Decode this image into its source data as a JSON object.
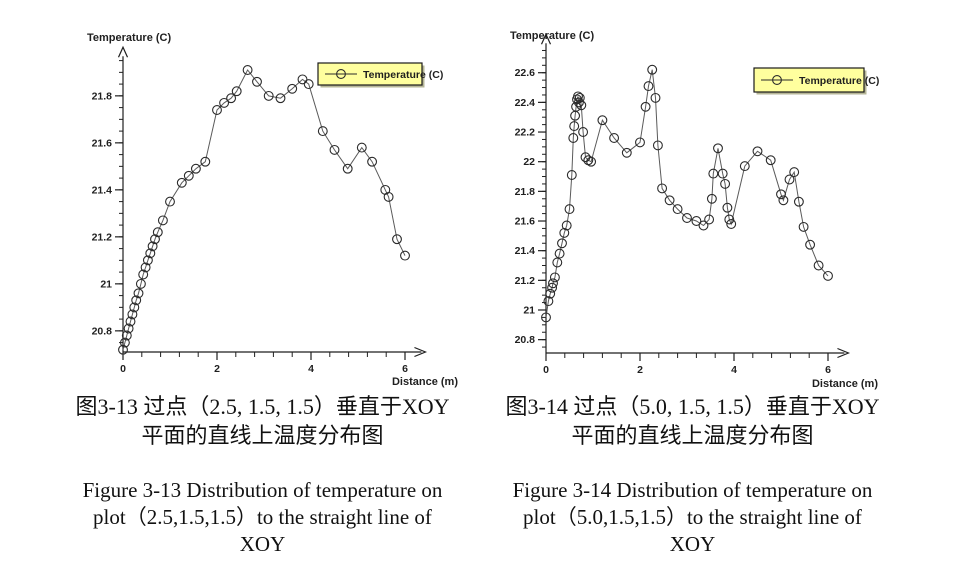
{
  "page": {
    "bg": "#ffffff"
  },
  "chart_data": [
    {
      "type": "line",
      "title": "Temperature (C)",
      "xlabel": "Distance (m)",
      "ylabel": "Temperature (C)",
      "legend_label": "Temperature (C)",
      "legend_bg": "#ffff9e",
      "line_color": "#5a5a5a",
      "marker_color": "#2b2b2b",
      "xlim": [
        0,
        6.35
      ],
      "ylim": [
        20.71,
        21.96
      ],
      "xticks": [
        0,
        2,
        4,
        6
      ],
      "xtick_labels": [
        "0",
        "2",
        "4",
        "6"
      ],
      "xtick_minor_step": 0.4,
      "yticks": [
        20.8,
        21,
        21.2,
        21.4,
        21.6,
        21.8
      ],
      "ytick_labels": [
        "20.8",
        "21",
        "21.2",
        "21.4",
        "21.6",
        "21.8"
      ],
      "ytick_minor_step": 0.05,
      "points": [
        [
          0,
          20.72
        ],
        [
          0.04,
          20.75
        ],
        [
          0.08,
          20.78
        ],
        [
          0.12,
          20.81
        ],
        [
          0.16,
          20.84
        ],
        [
          0.2,
          20.87
        ],
        [
          0.24,
          20.9
        ],
        [
          0.28,
          20.93
        ],
        [
          0.33,
          20.96
        ],
        [
          0.38,
          21.0
        ],
        [
          0.43,
          21.04
        ],
        [
          0.48,
          21.07
        ],
        [
          0.53,
          21.1
        ],
        [
          0.58,
          21.13
        ],
        [
          0.63,
          21.16
        ],
        [
          0.68,
          21.19
        ],
        [
          0.74,
          21.22
        ],
        [
          0.85,
          21.27
        ],
        [
          1.0,
          21.35
        ],
        [
          1.25,
          21.43
        ],
        [
          1.4,
          21.46
        ],
        [
          1.55,
          21.49
        ],
        [
          1.75,
          21.52
        ],
        [
          2.0,
          21.74
        ],
        [
          2.15,
          21.77
        ],
        [
          2.3,
          21.79
        ],
        [
          2.42,
          21.82
        ],
        [
          2.65,
          21.91
        ],
        [
          2.85,
          21.86
        ],
        [
          3.1,
          21.8
        ],
        [
          3.35,
          21.79
        ],
        [
          3.6,
          21.83
        ],
        [
          3.82,
          21.87
        ],
        [
          3.95,
          21.85
        ],
        [
          4.25,
          21.65
        ],
        [
          4.5,
          21.57
        ],
        [
          4.78,
          21.49
        ],
        [
          5.08,
          21.58
        ],
        [
          5.3,
          21.52
        ],
        [
          5.58,
          21.4
        ],
        [
          5.65,
          21.37
        ],
        [
          5.83,
          21.19
        ],
        [
          6.0,
          21.12
        ]
      ]
    },
    {
      "type": "line",
      "title": "Temperature (C)",
      "xlabel": "Distance (m)",
      "ylabel": "Temperature (C)",
      "legend_label": "Temperature (C)",
      "legend_bg": "#ffff9e",
      "line_color": "#5a5a5a",
      "marker_color": "#2b2b2b",
      "xlim": [
        0,
        6.35
      ],
      "ylim": [
        20.71,
        22.785
      ],
      "xticks": [
        0,
        2,
        4,
        6
      ],
      "xtick_labels": [
        "0",
        "2",
        "4",
        "6"
      ],
      "xtick_minor_step": 0.4,
      "yticks": [
        20.8,
        21,
        21.2,
        21.4,
        21.6,
        21.8,
        22,
        22.2,
        22.4,
        22.6
      ],
      "ytick_labels": [
        "20.8",
        "21",
        "21.2",
        "21.4",
        "21.6",
        "21.8",
        "22",
        "22.2",
        "22.4",
        "22.6"
      ],
      "ytick_minor_step": 0.05,
      "points": [
        [
          0,
          20.95
        ],
        [
          0.05,
          21.06
        ],
        [
          0.09,
          21.11
        ],
        [
          0.13,
          21.15
        ],
        [
          0.15,
          21.18
        ],
        [
          0.19,
          21.22
        ],
        [
          0.24,
          21.32
        ],
        [
          0.29,
          21.38
        ],
        [
          0.34,
          21.45
        ],
        [
          0.39,
          21.52
        ],
        [
          0.44,
          21.57
        ],
        [
          0.5,
          21.68
        ],
        [
          0.55,
          21.91
        ],
        [
          0.58,
          22.16
        ],
        [
          0.6,
          22.24
        ],
        [
          0.62,
          22.31
        ],
        [
          0.64,
          22.37
        ],
        [
          0.66,
          22.42
        ],
        [
          0.68,
          22.44
        ],
        [
          0.7,
          22.4
        ],
        [
          0.72,
          22.43
        ],
        [
          0.75,
          22.38
        ],
        [
          0.79,
          22.2
        ],
        [
          0.84,
          22.03
        ],
        [
          0.9,
          22.01
        ],
        [
          0.96,
          22.0
        ],
        [
          1.2,
          22.28
        ],
        [
          1.45,
          22.16
        ],
        [
          1.72,
          22.06
        ],
        [
          2.0,
          22.13
        ],
        [
          2.12,
          22.37
        ],
        [
          2.18,
          22.51
        ],
        [
          2.26,
          22.62
        ],
        [
          2.33,
          22.43
        ],
        [
          2.38,
          22.11
        ],
        [
          2.47,
          21.82
        ],
        [
          2.63,
          21.74
        ],
        [
          2.8,
          21.68
        ],
        [
          3.0,
          21.62
        ],
        [
          3.2,
          21.6
        ],
        [
          3.35,
          21.57
        ],
        [
          3.47,
          21.61
        ],
        [
          3.53,
          21.75
        ],
        [
          3.56,
          21.92
        ],
        [
          3.66,
          22.09
        ],
        [
          3.76,
          21.92
        ],
        [
          3.81,
          21.85
        ],
        [
          3.86,
          21.69
        ],
        [
          3.9,
          21.61
        ],
        [
          3.94,
          21.58
        ],
        [
          4.23,
          21.97
        ],
        [
          4.5,
          22.07
        ],
        [
          4.78,
          22.01
        ],
        [
          5.0,
          21.78
        ],
        [
          5.05,
          21.74
        ],
        [
          5.18,
          21.88
        ],
        [
          5.28,
          21.93
        ],
        [
          5.38,
          21.73
        ],
        [
          5.48,
          21.56
        ],
        [
          5.62,
          21.44
        ],
        [
          5.8,
          21.3
        ],
        [
          6.0,
          21.23
        ]
      ]
    }
  ],
  "captions": {
    "cn_left": {
      "line1": "图3-13 过点（2.5, 1.5, 1.5）垂直于XOY",
      "line2": "平面的直线上温度分布图"
    },
    "cn_right": {
      "line1": "图3-14 过点（5.0, 1.5, 1.5）垂直于XOY",
      "line2": "平面的直线上温度分布图"
    },
    "en_left": {
      "line1": "Figure 3-13 Distribution of temperature on",
      "line2": "plot（2.5,1.5,1.5）to the straight line of",
      "line3": "XOY"
    },
    "en_right": {
      "line1": "Figure 3-14 Distribution of temperature on",
      "line2": "plot（5.0,1.5,1.5）to the straight line of",
      "line3": "XOY"
    }
  }
}
